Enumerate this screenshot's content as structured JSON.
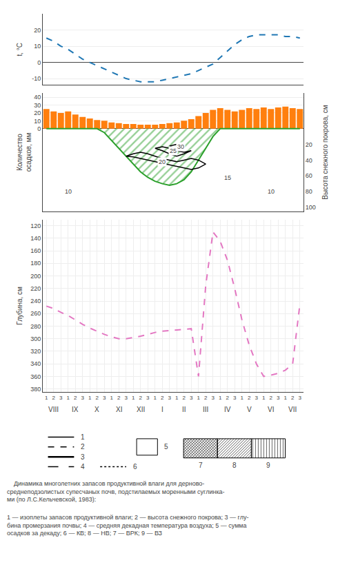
{
  "chart_data": [
    {
      "type": "line",
      "categories": [
        null,
        null,
        null,
        null,
        null,
        null,
        null,
        null,
        null,
        null,
        null,
        null,
        null,
        null,
        null,
        null,
        null,
        null,
        null,
        null,
        null,
        null,
        null,
        null,
        null,
        null,
        null,
        null,
        null,
        null,
        null,
        null,
        null,
        null,
        null,
        null
      ],
      "values": [
        15,
        13,
        10,
        8,
        5,
        2,
        0,
        -2,
        -4,
        -6,
        -8,
        -10,
        -11,
        -12,
        -12,
        -12,
        -11,
        -10,
        -9,
        -8,
        -7,
        -5,
        -3,
        -1,
        3,
        7,
        11,
        14,
        16,
        17,
        17,
        17,
        17,
        16,
        16,
        15
      ],
      "ylabel": "t, °C",
      "xlim": [
        -0.5,
        35.5
      ],
      "ylim": [
        -14,
        30
      ],
      "yticks": [
        -10,
        0,
        10,
        20
      ],
      "line_style": "dashed",
      "tick_labels": "y",
      "grid": true
    },
    {
      "type": "bar",
      "categories": [
        null,
        null,
        null,
        null,
        null,
        null,
        null,
        null,
        null,
        null,
        null,
        null,
        null,
        null,
        null,
        null,
        null,
        null,
        null,
        null,
        null,
        null,
        null,
        null,
        null,
        null,
        null,
        null,
        null,
        null,
        null,
        null,
        null,
        null,
        null,
        null
      ],
      "ylabel": "Количество\nосадков, мм",
      "y2label": "Высота снежного покрова, см",
      "xlim": [
        -0.5,
        35.5
      ],
      "ylim": [
        -105,
        45
      ],
      "yticks": [
        0,
        10,
        20,
        30,
        40
      ],
      "y2lim": [
        105,
        -45
      ],
      "y2ticks": [
        20,
        40,
        60,
        80,
        100
      ],
      "tick_labels": "y",
      "grid": true,
      "series": [
        {
          "type": "bar",
          "values": [
            25,
            22,
            20,
            22,
            18,
            15,
            13,
            11,
            10,
            8,
            7,
            6,
            6,
            5,
            5,
            5,
            6,
            7,
            8,
            10,
            12,
            16,
            20,
            24,
            26,
            24,
            22,
            24,
            26,
            25,
            27,
            25,
            27,
            28,
            26,
            25
          ]
        },
        {
          "type": "area",
          "axis": "y2",
          "values": [
            0,
            0,
            0,
            0,
            0,
            0,
            0,
            0,
            5,
            15,
            25,
            35,
            45,
            55,
            62,
            67,
            70,
            72,
            70,
            65,
            55,
            40,
            25,
            10,
            0,
            0,
            0,
            0,
            0,
            0,
            0,
            0,
            0,
            0,
            0,
            0
          ]
        },
        {
          "type": "line",
          "axis": "y2",
          "color": "#000000",
          "x": [
            11,
            12,
            13,
            14,
            15,
            16,
            17,
            18,
            19,
            20,
            21,
            22,
            21,
            20,
            19,
            18,
            17,
            16,
            15,
            14,
            13,
            12,
            11
          ],
          "values": [
            35,
            32,
            30,
            32,
            35,
            38,
            40,
            42,
            40,
            38,
            40,
            45,
            50,
            52,
            50,
            48,
            46,
            44,
            42,
            40,
            38,
            36,
            35
          ]
        },
        {
          "type": "line",
          "axis": "y2",
          "color": "#000000",
          "x": [
            15,
            16,
            17,
            18,
            19,
            20,
            19,
            18,
            17,
            16,
            15
          ],
          "values": [
            25,
            23,
            25,
            28,
            30,
            28,
            32,
            35,
            32,
            28,
            25
          ]
        },
        {
          "type": "line",
          "axis": "y2",
          "color": "#000000",
          "x": [
            17,
            18,
            19,
            18,
            17
          ],
          "values": [
            22,
            20,
            22,
            26,
            22
          ]
        }
      ],
      "annotations": [
        {
          "text": "20",
          "x": 16,
          "y": 42,
          "axis": "y2"
        },
        {
          "text": "25",
          "x": 17.5,
          "y": 28,
          "axis": "y2"
        },
        {
          "text": "30",
          "x": 18.5,
          "y": 23,
          "axis": "y2"
        },
        {
          "text": "15",
          "x": 25,
          "y": 62,
          "axis": "y2"
        },
        {
          "text": "10",
          "x": 3,
          "y": 80,
          "axis": "y2"
        },
        {
          "text": "10",
          "x": 31,
          "y": 80,
          "axis": "y2"
        }
      ]
    },
    {
      "type": "line",
      "categories": [
        "1",
        "2",
        "3",
        "1",
        "2",
        "3",
        "1",
        "2",
        "3",
        "1",
        "2",
        "3",
        "1",
        "2",
        "3",
        "1",
        "2",
        "3",
        "1",
        "2",
        "3",
        "1",
        "2",
        "3",
        "1",
        "2",
        "3",
        "1",
        "2",
        "3",
        "1",
        "2",
        "3",
        "1",
        "2",
        "3"
      ],
      "values": [
        248,
        252,
        258,
        263,
        270,
        277,
        283,
        288,
        293,
        297,
        300,
        300,
        298,
        296,
        293,
        290,
        288,
        287,
        286,
        285,
        284,
        360,
        215,
        130,
        145,
        175,
        220,
        270,
        310,
        340,
        360,
        358,
        355,
        350,
        340,
        245
      ],
      "ylabel": "Глубина, см",
      "xlim": [
        -0.5,
        35.5
      ],
      "ylim": [
        385,
        110
      ],
      "yticks": [
        120,
        140,
        160,
        180,
        200,
        220,
        240,
        260,
        280,
        300,
        320,
        340,
        360,
        380
      ],
      "line_style": "dashed",
      "grid": true,
      "annotations": [
        {
          "text": "VIII",
          "x": 1
        },
        {
          "text": "IX",
          "x": 4
        },
        {
          "text": "X",
          "x": 7
        },
        {
          "text": "XI",
          "x": 10
        },
        {
          "text": "XII",
          "x": 13
        },
        {
          "text": "I",
          "x": 16
        },
        {
          "text": "II",
          "x": 19
        },
        {
          "text": "III",
          "x": 22
        },
        {
          "text": "IV",
          "x": 25
        },
        {
          "text": "V",
          "x": 28
        },
        {
          "text": "VI",
          "x": 31
        },
        {
          "text": "VII",
          "x": 34
        },
        {
          "text": "1",
          "line_style": "solid"
        },
        {
          "text": "2",
          "line_style": "dashed"
        },
        {
          "text": "3",
          "line_style": "solid"
        },
        {
          "text": "4",
          "line_style": "longdash"
        },
        {
          "text": "6",
          "line_style": "dotted"
        },
        {
          "text": "5",
          "marker": "rectangle"
        },
        {
          "text": "7",
          "marker": "cross-hatch"
        },
        {
          "text": "8",
          "marker": "diagonal-hatch"
        },
        {
          "text": "9",
          "marker": "vertical-hatch"
        },
        {
          "text": "    Динамика многолетних запасов продуктивной влаги для дерново-\nсреднеподзолистых супесчаных почв, подстилаемых моренными суглинка-\nми (по Л.С.Кельчевской, 1983):"
        },
        {
          "text": "1 — изоплеты запасов продуктивной влаги; 2 — высота снежного покрова; 3 — глу-\nбина промерзания почвы; 4 — средняя декадная температура воздуха; 5 — сумма\nосадков за декаду; 6 — КВ; 8 — НВ; 7 — ВРК; 9 — ВЗ"
        }
      ]
    }
  ]
}
